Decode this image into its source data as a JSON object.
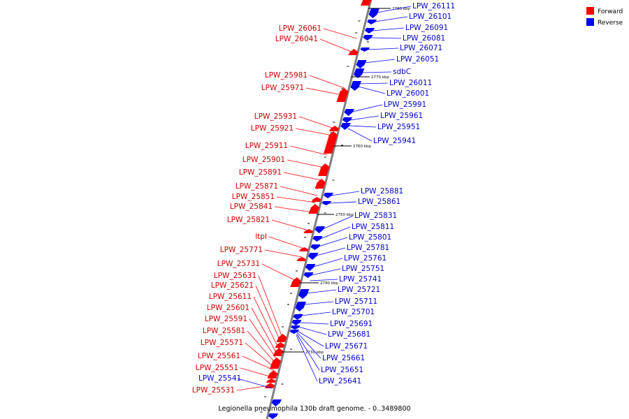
{
  "caption": "Legionella pneumophila 130b draft genome. - 0..3489800",
  "legend": [
    {
      "label": "Forward",
      "color": "#ff0000"
    },
    {
      "label": "Reverse",
      "color": "#0000ff"
    }
  ],
  "colors": {
    "forward": "#ff0000",
    "reverse": "#0000ff",
    "backbone": "#808080",
    "forward_text": "#cc0000",
    "reverse_text": "#0000cc"
  },
  "ticks": [
    "2780 kbp",
    "2770 kbp",
    "2760 kbp",
    "2750 kbp",
    "2740 kbp",
    "2730 kbp"
  ],
  "forward_labels": [
    "LPW_26061",
    "LPW_26041",
    "LPW_25981",
    "LPW_25971",
    "LPW_25931",
    "LPW_25921",
    "LPW_25911",
    "LPW_25901",
    "LPW_25891",
    "LPW_25871",
    "LPW_25851",
    "LPW_25841",
    "LPW_25821",
    "ltpI",
    "LPW_25771",
    "LPW_25731",
    "LPW_25631",
    "LPW_25621",
    "LPW_25611",
    "LPW_25601",
    "LPW_25591",
    "LPW_25581",
    "LPW_25571",
    "LPW_25561",
    "LPW_25551",
    "LPW_25531"
  ],
  "reverse_labels": [
    "LPW_26111",
    "LPW_26101",
    "LPW_26091",
    "LPW_26081",
    "LPW_26071",
    "LPW_26051",
    "sdbC",
    "LPW_26011",
    "LPW_26001",
    "LPW_25991",
    "LPW_25961",
    "LPW_25951",
    "LPW_25941",
    "LPW_25881",
    "LPW_25861",
    "LPW_25831",
    "LPW_25811",
    "LPW_25801",
    "LPW_25781",
    "LPW_25761",
    "LPW_25751",
    "LPW_25741",
    "LPW_25721",
    "LPW_25711",
    "LPW_25701",
    "LPW_25691",
    "LPW_25681",
    "LPW_25671",
    "LPW_25661",
    "LPW_25651",
    "LPW_25641",
    "LPW_25541"
  ]
}
